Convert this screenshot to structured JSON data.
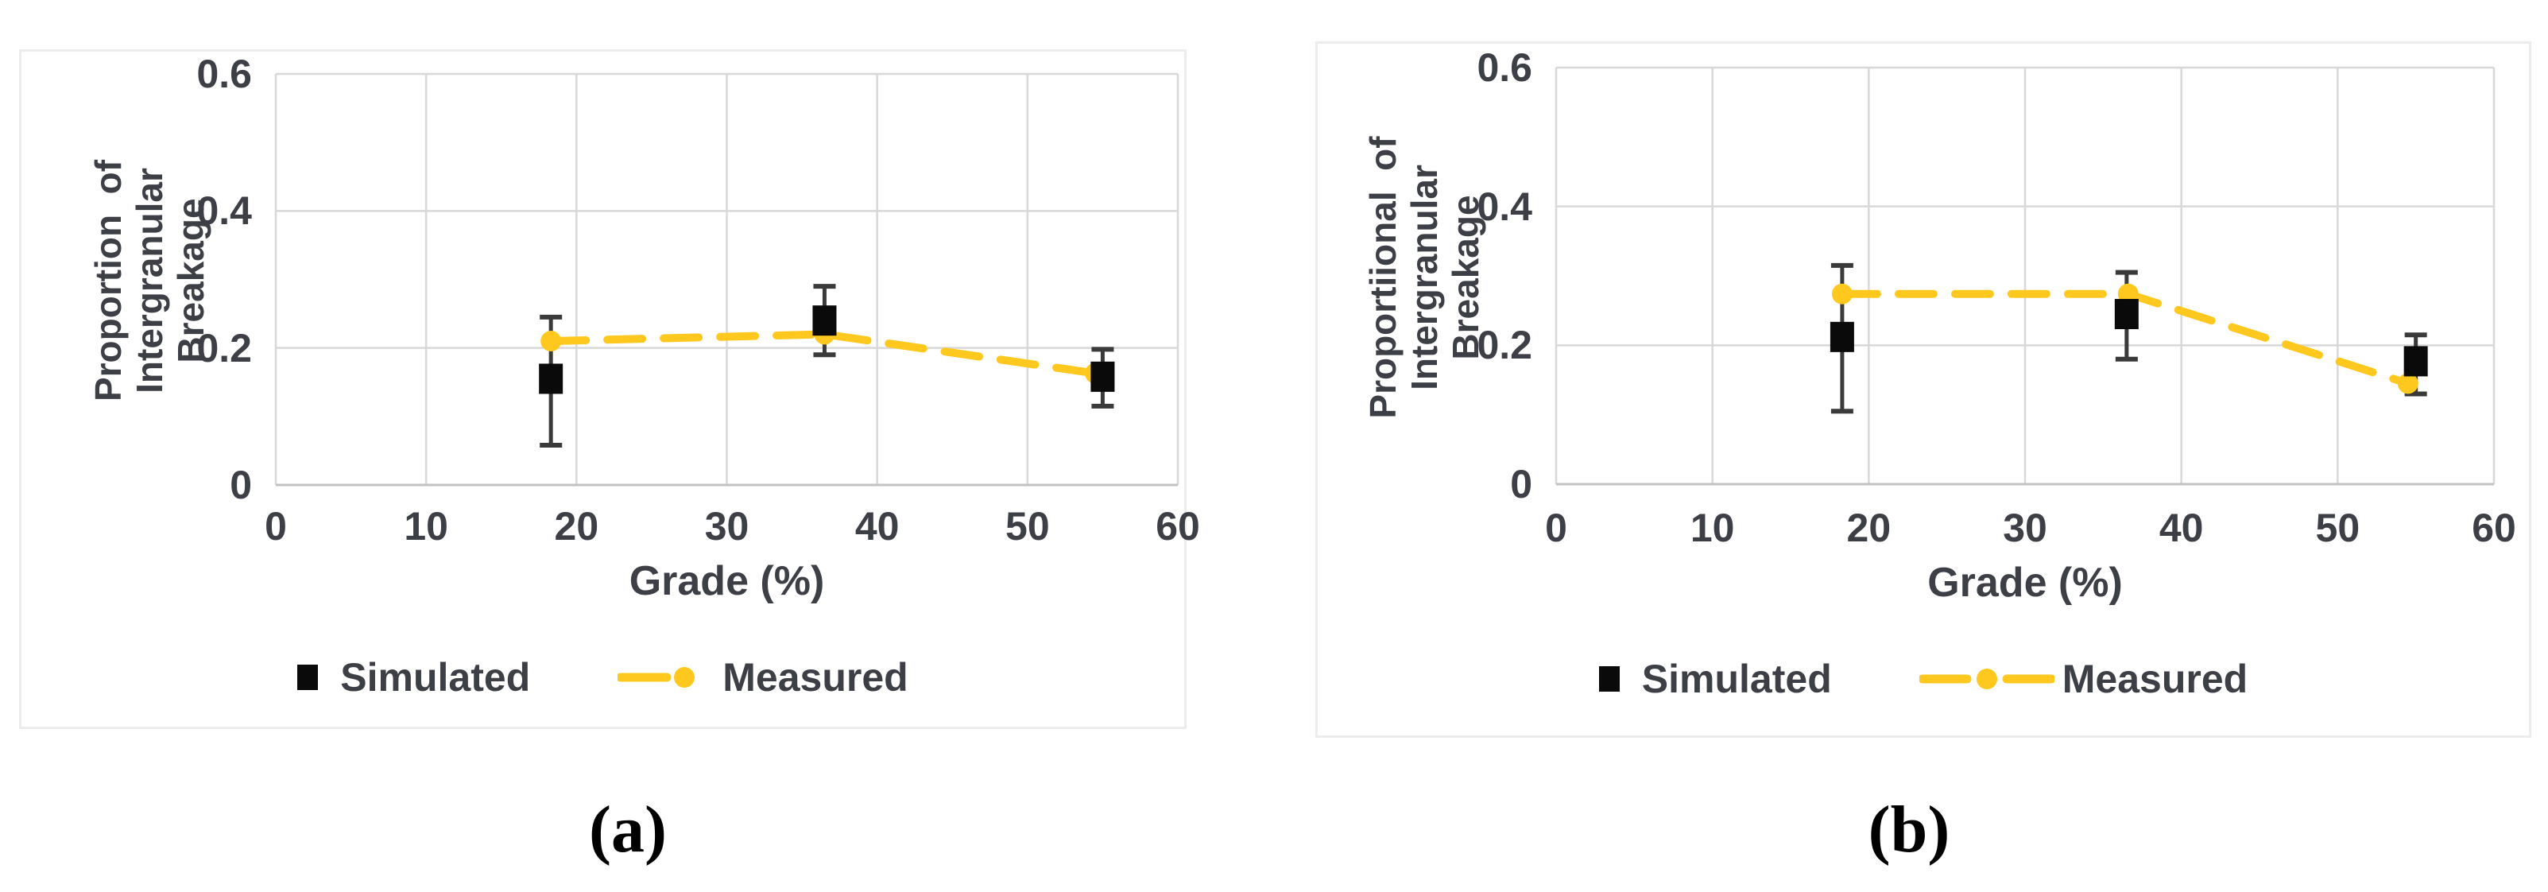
{
  "captions": {
    "a": "(a)",
    "b": "(b)"
  },
  "colors": {
    "measured_line": "#FFC81E",
    "simulated_marker": "#0a0a0a",
    "error_bar": "#3a3a3a",
    "grid": "#d8d8d8",
    "axis": "#c2c2c2",
    "text": "#3d3f47",
    "panel_border": "#ececec"
  },
  "chart_data": [
    {
      "id": "a",
      "type": "scatter",
      "title": "",
      "xlabel": "Grade (%)",
      "ylabel_lines": [
        "Proportion  of Intergranular",
        "Breakage"
      ],
      "xlim": [
        0,
        60
      ],
      "ylim": [
        0,
        0.6
      ],
      "x_tick_values": [
        0,
        10,
        20,
        30,
        40,
        50,
        60
      ],
      "x_tick_labels": [
        "0",
        "10",
        "20",
        "30",
        "40",
        "50",
        "60"
      ],
      "y_tick_values": [
        0,
        0.2,
        0.4,
        0.6
      ],
      "y_tick_labels": [
        "0",
        "0.2",
        "0.4",
        "0.6"
      ],
      "grid": true,
      "legend_position": "bottom",
      "series": [
        {
          "name": "Simulated",
          "type": "scatter",
          "marker": "black-square",
          "x": [
            18.3,
            36.5,
            55
          ],
          "y": [
            0.155,
            0.24,
            0.158
          ],
          "err_lo": [
            0.058,
            0.19,
            0.115
          ],
          "err_hi": [
            0.245,
            0.29,
            0.198
          ]
        },
        {
          "name": "Measured",
          "type": "dashed-line",
          "marker": "circle",
          "x": [
            18.3,
            36.5,
            54.5
          ],
          "y": [
            0.21,
            0.22,
            0.163
          ]
        }
      ]
    },
    {
      "id": "b",
      "type": "scatter",
      "title": "",
      "xlabel": "Grade (%)",
      "ylabel_lines": [
        "Proportiional  of Intergranular",
        "Breakage"
      ],
      "xlim": [
        0,
        60
      ],
      "ylim": [
        0,
        0.6
      ],
      "x_tick_values": [
        0,
        10,
        20,
        30,
        40,
        50,
        60
      ],
      "x_tick_labels": [
        "0",
        "10",
        "20",
        "30",
        "40",
        "50",
        "60"
      ],
      "y_tick_values": [
        0,
        0.2,
        0.4,
        0.6
      ],
      "y_tick_labels": [
        "0",
        "0.2",
        "0.4",
        "0.6"
      ],
      "grid": true,
      "legend_position": "bottom",
      "series": [
        {
          "name": "Simulated",
          "type": "scatter",
          "marker": "black-square",
          "x": [
            18.3,
            36.5,
            55
          ],
          "y": [
            0.212,
            0.245,
            0.177
          ],
          "err_lo": [
            0.105,
            0.18,
            0.13
          ],
          "err_hi": [
            0.315,
            0.305,
            0.215
          ]
        },
        {
          "name": "Measured",
          "type": "dashed-line",
          "marker": "circle",
          "x": [
            18.3,
            36.6,
            54.5
          ],
          "y": [
            0.274,
            0.274,
            0.145
          ]
        }
      ]
    }
  ]
}
